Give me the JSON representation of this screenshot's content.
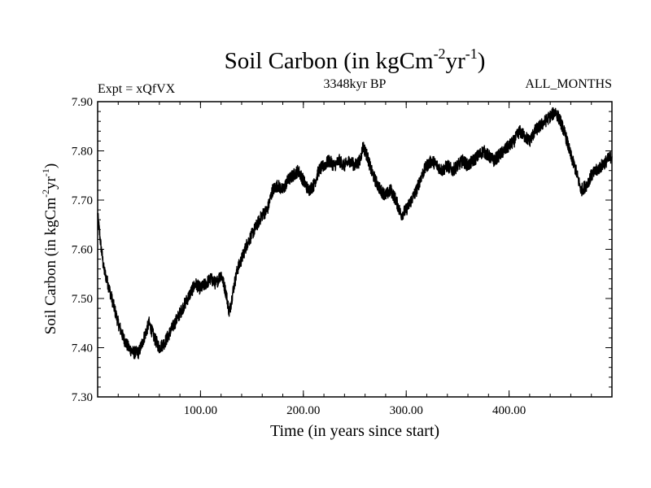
{
  "chart_data": {
    "type": "line",
    "title": "Soil Carbon (in kgCm",
    "title_sup1": "-2",
    "title_mid": "yr",
    "title_sup2": "-1",
    "title_end": ")",
    "subtitle_left": "Expt = xQfVX",
    "subtitle_center": "3348kyr BP",
    "subtitle_right": "ALL_MONTHS",
    "xlabel": "Time (in years since start)",
    "ylabel": "Soil Carbon (in kgCm",
    "ylabel_sup1": "-2",
    "ylabel_mid": "yr",
    "ylabel_sup2": "-1",
    "ylabel_end": ")",
    "xlim": [
      0,
      500
    ],
    "ylim": [
      7.3,
      7.9
    ],
    "x_ticks": [
      100,
      200,
      300,
      400
    ],
    "x_tick_labels": [
      "100.00",
      "200.00",
      "300.00",
      "400.00"
    ],
    "y_ticks": [
      7.3,
      7.4,
      7.5,
      7.6,
      7.7,
      7.8,
      7.9
    ],
    "y_tick_labels": [
      "7.30",
      "7.40",
      "7.50",
      "7.60",
      "7.70",
      "7.80",
      "7.90"
    ],
    "line_color": "#000000",
    "noise_amplitude": 0.013,
    "series": [
      {
        "name": "Soil Carbon",
        "x": [
          0,
          3,
          6,
          10,
          15,
          20,
          25,
          30,
          35,
          40,
          45,
          50,
          55,
          60,
          65,
          70,
          75,
          80,
          85,
          90,
          95,
          100,
          105,
          110,
          115,
          120,
          125,
          128,
          132,
          136,
          140,
          145,
          150,
          155,
          160,
          165,
          170,
          175,
          180,
          185,
          190,
          195,
          200,
          205,
          210,
          215,
          220,
          225,
          230,
          235,
          240,
          245,
          250,
          255,
          258,
          262,
          266,
          270,
          275,
          280,
          285,
          290,
          295,
          300,
          305,
          310,
          315,
          320,
          325,
          330,
          335,
          340,
          345,
          350,
          355,
          360,
          365,
          370,
          375,
          380,
          385,
          390,
          395,
          400,
          405,
          410,
          415,
          420,
          425,
          430,
          435,
          440,
          445,
          450,
          455,
          460,
          465,
          470,
          475,
          480,
          485,
          490,
          495,
          500
        ],
        "y": [
          7.67,
          7.61,
          7.56,
          7.53,
          7.49,
          7.45,
          7.42,
          7.4,
          7.39,
          7.39,
          7.42,
          7.45,
          7.42,
          7.4,
          7.41,
          7.43,
          7.45,
          7.47,
          7.49,
          7.51,
          7.53,
          7.52,
          7.53,
          7.54,
          7.53,
          7.55,
          7.51,
          7.47,
          7.52,
          7.56,
          7.58,
          7.61,
          7.63,
          7.65,
          7.67,
          7.68,
          7.72,
          7.73,
          7.72,
          7.74,
          7.75,
          7.76,
          7.74,
          7.72,
          7.73,
          7.76,
          7.77,
          7.78,
          7.77,
          7.78,
          7.77,
          7.78,
          7.77,
          7.78,
          7.81,
          7.79,
          7.76,
          7.74,
          7.72,
          7.71,
          7.72,
          7.7,
          7.67,
          7.68,
          7.7,
          7.72,
          7.75,
          7.77,
          7.78,
          7.77,
          7.76,
          7.77,
          7.76,
          7.77,
          7.78,
          7.77,
          7.78,
          7.79,
          7.8,
          7.79,
          7.78,
          7.79,
          7.8,
          7.81,
          7.82,
          7.84,
          7.83,
          7.82,
          7.84,
          7.85,
          7.86,
          7.87,
          7.88,
          7.86,
          7.83,
          7.79,
          7.76,
          7.72,
          7.73,
          7.75,
          7.76,
          7.77,
          7.78,
          7.79
        ]
      }
    ]
  }
}
